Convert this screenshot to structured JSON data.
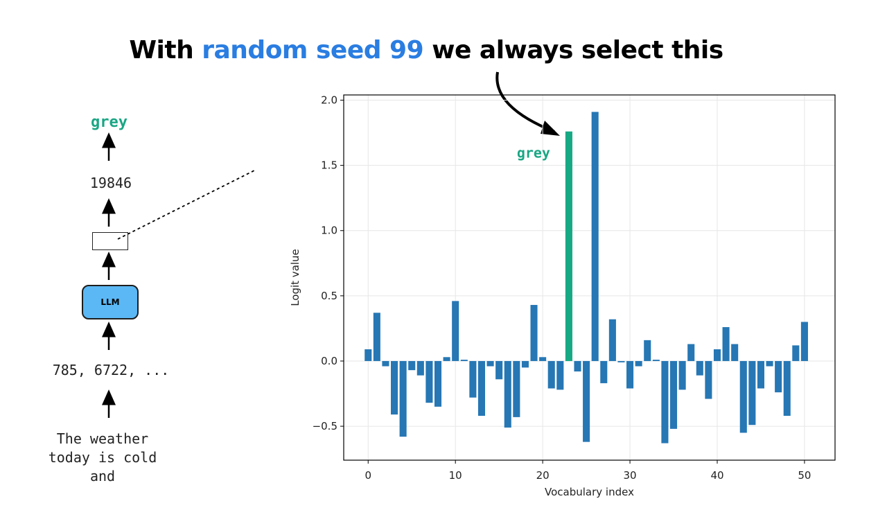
{
  "title": {
    "prefix": "With",
    "highlight": "random seed 99",
    "suffix": "we always select this",
    "highlight_color": "#2a7de1"
  },
  "pipeline": {
    "output_token": "grey",
    "output_color": "#1aa684",
    "token_id": "19846",
    "model_label": "LLM",
    "model_color": "#5bb8f5",
    "input_token_ids": "785, 6722, ...",
    "input_text": "The weather\ntoday is cold\nand"
  },
  "chart_data": {
    "type": "bar",
    "xlabel": "Vocabulary index",
    "ylabel": "Logit value",
    "xlim": [
      -2.8,
      53.5
    ],
    "ylim": [
      -0.76,
      2.04
    ],
    "xticks": [
      0,
      10,
      20,
      30,
      40,
      50
    ],
    "yticks": [
      -0.5,
      0.0,
      0.5,
      1.0,
      1.5,
      2.0
    ],
    "ytick_labels": [
      "−0.5",
      "0.0",
      "0.5",
      "1.0",
      "1.5",
      "2.0"
    ],
    "grid": true,
    "bar_color": "#2677b4",
    "highlight_color": "#16a984",
    "highlight_index": 23,
    "highlight_label": "grey",
    "x": [
      0,
      1,
      2,
      3,
      4,
      5,
      6,
      7,
      8,
      9,
      10,
      11,
      12,
      13,
      14,
      15,
      16,
      17,
      18,
      19,
      20,
      21,
      22,
      23,
      24,
      25,
      26,
      27,
      28,
      29,
      30,
      31,
      32,
      33,
      34,
      35,
      36,
      37,
      38,
      39,
      40,
      41,
      42,
      43,
      44,
      45,
      46,
      47,
      48,
      49,
      50
    ],
    "values": [
      0.09,
      0.37,
      -0.04,
      -0.41,
      -0.58,
      -0.07,
      -0.11,
      -0.32,
      -0.35,
      0.03,
      0.46,
      0.01,
      -0.28,
      -0.42,
      -0.04,
      -0.14,
      -0.51,
      -0.43,
      -0.05,
      0.43,
      0.03,
      -0.21,
      -0.22,
      1.76,
      -0.08,
      -0.62,
      1.91,
      -0.17,
      0.32,
      -0.01,
      -0.21,
      -0.04,
      0.16,
      0.01,
      -0.63,
      -0.52,
      -0.22,
      0.13,
      -0.11,
      -0.29,
      0.09,
      0.26,
      0.13,
      -0.55,
      -0.49,
      -0.21,
      -0.04,
      -0.24,
      -0.42,
      0.12,
      0.3
    ]
  }
}
